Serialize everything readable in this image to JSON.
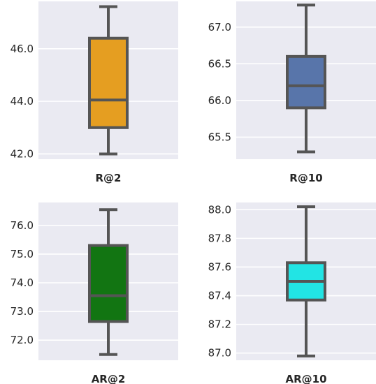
{
  "chart_data": [
    {
      "type": "box",
      "xlabel": "R@2",
      "color": "#E59E21",
      "ylim": [
        41.8,
        47.8
      ],
      "yticks": [
        42.0,
        44.0,
        46.0
      ],
      "ytick_labels": [
        "42.0",
        "44.0",
        "46.0"
      ],
      "grid": true,
      "box": {
        "whisker_low": 42.0,
        "q1": 43.0,
        "median": 44.05,
        "q3": 46.4,
        "whisker_high": 47.6
      }
    },
    {
      "type": "box",
      "xlabel": "R@10",
      "color": "#5875AA",
      "ylim": [
        65.2,
        67.35
      ],
      "yticks": [
        65.5,
        66.0,
        66.5,
        67.0
      ],
      "ytick_labels": [
        "65.5",
        "66.0",
        "66.5",
        "67.0"
      ],
      "grid": true,
      "box": {
        "whisker_low": 65.3,
        "q1": 65.9,
        "median": 66.2,
        "q3": 66.6,
        "whisker_high": 67.3
      }
    },
    {
      "type": "box",
      "xlabel": "AR@2",
      "color": "#127512",
      "ylim": [
        71.3,
        76.8
      ],
      "yticks": [
        72.0,
        73.0,
        74.0,
        75.0,
        76.0
      ],
      "ytick_labels": [
        "72.0",
        "73.0",
        "74.0",
        "75.0",
        "76.0"
      ],
      "grid": true,
      "box": {
        "whisker_low": 71.5,
        "q1": 72.65,
        "median": 73.55,
        "q3": 75.3,
        "whisker_high": 76.55
      }
    },
    {
      "type": "box",
      "xlabel": "AR@10",
      "color": "#22E4E4",
      "ylim": [
        86.95,
        88.05
      ],
      "yticks": [
        87.0,
        87.2,
        87.4,
        87.6,
        87.8,
        88.0
      ],
      "ytick_labels": [
        "87.0",
        "87.2",
        "87.4",
        "87.6",
        "87.8",
        "88.0"
      ],
      "grid": true,
      "box": {
        "whisker_low": 86.98,
        "q1": 87.37,
        "median": 87.5,
        "q3": 87.63,
        "whisker_high": 88.02
      }
    }
  ]
}
